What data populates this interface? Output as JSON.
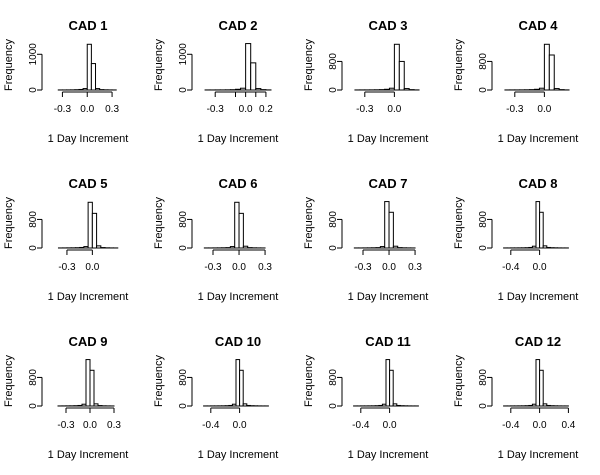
{
  "chart_data": [
    {
      "type": "bar",
      "title": "CAD 1",
      "xlabel": "1 Day Increment",
      "ylabel": "Frequency",
      "xlim": [
        -0.45,
        0.42
      ],
      "ylim": [
        0,
        1400
      ],
      "x_ticks": [
        -0.3,
        0.0,
        0.3
      ],
      "x_tick_labels": [
        "-0.3",
        "0.0",
        "0.3"
      ],
      "y_ticks": [
        0,
        1000
      ],
      "y_tick_labels": [
        "0",
        "1000"
      ],
      "bin_edges": [
        -0.45,
        -0.4,
        -0.35,
        -0.3,
        -0.25,
        -0.2,
        -0.15,
        -0.1,
        -0.05,
        0.0,
        0.05,
        0.1,
        0.15,
        0.2,
        0.25,
        0.3,
        0.35,
        0.4
      ],
      "values": [
        0,
        0,
        2,
        2,
        3,
        4,
        8,
        15,
        40,
        1280,
        740,
        40,
        10,
        5,
        3,
        2,
        0
      ]
    },
    {
      "type": "bar",
      "title": "CAD 2",
      "xlabel": "1 Day Increment",
      "ylabel": "Frequency",
      "xlim": [
        -0.45,
        0.26
      ],
      "ylim": [
        0,
        1400
      ],
      "x_ticks": [
        -0.3,
        0.0,
        0.2
      ],
      "x_tick_labels": [
        "-0.3",
        "0.0",
        "0.2"
      ],
      "y_ticks": [
        0,
        1000
      ],
      "y_tick_labels": [
        "0",
        "1000"
      ],
      "bin_edges": [
        -0.45,
        -0.4,
        -0.35,
        -0.3,
        -0.25,
        -0.2,
        -0.15,
        -0.1,
        -0.05,
        0.0,
        0.05,
        0.1,
        0.15,
        0.2,
        0.25
      ],
      "values": [
        0,
        2,
        2,
        3,
        3,
        5,
        8,
        20,
        50,
        1300,
        760,
        40,
        10,
        3
      ],
      "x_unlabeled_ticks": [
        -0.1,
        0.1
      ]
    },
    {
      "type": "bar",
      "title": "CAD 3",
      "xlabel": "1 Day Increment",
      "ylabel": "Frequency",
      "xlim": [
        -0.45,
        0.28
      ],
      "ylim": [
        0,
        1400
      ],
      "x_ticks": [
        -0.3,
        0.0
      ],
      "x_tick_labels": [
        "-0.3",
        "0.0"
      ],
      "y_ticks": [
        0,
        800
      ],
      "y_tick_labels": [
        "0",
        "800"
      ],
      "bin_edges": [
        -0.45,
        -0.4,
        -0.35,
        -0.3,
        -0.25,
        -0.2,
        -0.15,
        -0.1,
        -0.05,
        0.0,
        0.05,
        0.1,
        0.15,
        0.2,
        0.25
      ],
      "values": [
        0,
        2,
        3,
        3,
        4,
        6,
        10,
        20,
        50,
        1280,
        800,
        40,
        10,
        3
      ]
    },
    {
      "type": "bar",
      "title": "CAD 4",
      "xlabel": "1 Day Increment",
      "ylabel": "Frequency",
      "xlim": [
        -0.45,
        0.28
      ],
      "ylim": [
        0,
        1400
      ],
      "x_ticks": [
        -0.3,
        0.0
      ],
      "x_tick_labels": [
        "-0.3",
        "0.0"
      ],
      "y_ticks": [
        0,
        800
      ],
      "y_tick_labels": [
        "0",
        "800"
      ],
      "bin_edges": [
        -0.45,
        -0.4,
        -0.35,
        -0.3,
        -0.25,
        -0.2,
        -0.15,
        -0.1,
        -0.05,
        0.0,
        0.05,
        0.1,
        0.15,
        0.2,
        0.25
      ],
      "values": [
        0,
        2,
        3,
        3,
        4,
        6,
        10,
        20,
        50,
        1280,
        980,
        40,
        10,
        3
      ]
    },
    {
      "type": "bar",
      "title": "CAD 5",
      "xlabel": "1 Day Increment",
      "ylabel": "Frequency",
      "xlim": [
        -0.5,
        0.35
      ],
      "ylim": [
        0,
        1400
      ],
      "x_ticks": [
        -0.3,
        0.0
      ],
      "x_tick_labels": [
        "-0.3",
        "0.0"
      ],
      "y_ticks": [
        0,
        800
      ],
      "y_tick_labels": [
        "0",
        "800"
      ],
      "bin_edges": [
        -0.5,
        -0.45,
        -0.4,
        -0.35,
        -0.3,
        -0.25,
        -0.2,
        -0.15,
        -0.1,
        -0.05,
        0.0,
        0.05,
        0.1,
        0.15,
        0.2,
        0.25,
        0.3,
        0.35
      ],
      "values": [
        0,
        0,
        2,
        3,
        4,
        5,
        8,
        15,
        40,
        1280,
        970,
        60,
        12,
        5,
        3,
        2,
        0
      ]
    },
    {
      "type": "bar",
      "title": "CAD 6",
      "xlabel": "1 Day Increment",
      "ylabel": "Frequency",
      "xlim": [
        -0.45,
        0.38
      ],
      "ylim": [
        0,
        1400
      ],
      "x_ticks": [
        -0.3,
        0.0,
        0.3
      ],
      "x_tick_labels": [
        "-0.3",
        "0.0",
        "0.3"
      ],
      "y_ticks": [
        0,
        800
      ],
      "y_tick_labels": [
        "0",
        "800"
      ],
      "bin_edges": [
        -0.45,
        -0.4,
        -0.35,
        -0.3,
        -0.25,
        -0.2,
        -0.15,
        -0.1,
        -0.05,
        0.0,
        0.05,
        0.1,
        0.15,
        0.2,
        0.25,
        0.3,
        0.35
      ],
      "values": [
        0,
        2,
        2,
        3,
        4,
        6,
        10,
        40,
        1280,
        970,
        50,
        10,
        5,
        3,
        2,
        0
      ]
    },
    {
      "type": "bar",
      "title": "CAD 7",
      "xlabel": "1 Day Increment",
      "ylabel": "Frequency",
      "xlim": [
        -0.45,
        0.38
      ],
      "ylim": [
        0,
        1400
      ],
      "x_ticks": [
        -0.3,
        0.0,
        0.3
      ],
      "x_tick_labels": [
        "-0.3",
        "0.0",
        "0.3"
      ],
      "y_ticks": [
        0,
        800
      ],
      "y_tick_labels": [
        "0",
        "800"
      ],
      "bin_edges": [
        -0.45,
        -0.4,
        -0.35,
        -0.3,
        -0.25,
        -0.2,
        -0.15,
        -0.1,
        -0.05,
        0.0,
        0.05,
        0.1,
        0.15,
        0.2,
        0.25,
        0.3,
        0.35
      ],
      "values": [
        0,
        2,
        2,
        3,
        4,
        6,
        10,
        40,
        1300,
        1000,
        50,
        10,
        5,
        3,
        2,
        0
      ]
    },
    {
      "type": "bar",
      "title": "CAD 8",
      "xlabel": "1 Day Increment",
      "ylabel": "Frequency",
      "xlim": [
        -0.55,
        0.45
      ],
      "ylim": [
        0,
        1400
      ],
      "x_ticks": [
        -0.4,
        0.0
      ],
      "x_tick_labels": [
        "-0.4",
        "0.0"
      ],
      "y_ticks": [
        0,
        800
      ],
      "y_tick_labels": [
        "0",
        "800"
      ],
      "bin_edges": [
        -0.55,
        -0.5,
        -0.45,
        -0.4,
        -0.35,
        -0.3,
        -0.25,
        -0.2,
        -0.15,
        -0.1,
        -0.05,
        0.0,
        0.05,
        0.1,
        0.15,
        0.2,
        0.25,
        0.3,
        0.35,
        0.4,
        0.45
      ],
      "values": [
        0,
        2,
        2,
        3,
        3,
        4,
        5,
        8,
        15,
        50,
        1300,
        1000,
        60,
        15,
        8,
        5,
        3,
        2,
        2,
        0
      ]
    },
    {
      "type": "bar",
      "title": "CAD 9",
      "xlabel": "1 Day Increment",
      "ylabel": "Frequency",
      "xlim": [
        -0.5,
        0.4
      ],
      "ylim": [
        0,
        1400
      ],
      "x_ticks": [
        -0.3,
        0.0,
        0.3
      ],
      "x_tick_labels": [
        "-0.3",
        "0.0",
        "0.3"
      ],
      "y_ticks": [
        0,
        800
      ],
      "y_tick_labels": [
        "0",
        "800"
      ],
      "bin_edges": [
        -0.5,
        -0.45,
        -0.4,
        -0.35,
        -0.3,
        -0.25,
        -0.2,
        -0.15,
        -0.1,
        -0.05,
        0.0,
        0.05,
        0.1,
        0.15,
        0.2,
        0.25,
        0.3,
        0.35,
        0.4
      ],
      "values": [
        0,
        0,
        2,
        3,
        4,
        5,
        8,
        15,
        50,
        1300,
        1000,
        60,
        12,
        5,
        3,
        2,
        0,
        0
      ]
    },
    {
      "type": "bar",
      "title": "CAD 10",
      "xlabel": "1 Day Increment",
      "ylabel": "Frequency",
      "xlim": [
        -0.55,
        0.45
      ],
      "ylim": [
        0,
        1400
      ],
      "x_ticks": [
        -0.4,
        0.0
      ],
      "x_tick_labels": [
        "-0.4",
        "0.0"
      ],
      "y_ticks": [
        0,
        800
      ],
      "y_tick_labels": [
        "0",
        "800"
      ],
      "bin_edges": [
        -0.55,
        -0.5,
        -0.45,
        -0.4,
        -0.35,
        -0.3,
        -0.25,
        -0.2,
        -0.15,
        -0.1,
        -0.05,
        0.0,
        0.05,
        0.1,
        0.15,
        0.2,
        0.25,
        0.3,
        0.35,
        0.4,
        0.45
      ],
      "values": [
        0,
        2,
        2,
        3,
        3,
        4,
        5,
        8,
        15,
        50,
        1300,
        1000,
        60,
        15,
        8,
        5,
        3,
        2,
        2,
        0
      ]
    },
    {
      "type": "bar",
      "title": "CAD 11",
      "xlabel": "1 Day Increment",
      "ylabel": "Frequency",
      "xlim": [
        -0.55,
        0.45
      ],
      "ylim": [
        0,
        1400
      ],
      "x_ticks": [
        -0.4,
        0.0
      ],
      "x_tick_labels": [
        "-0.4",
        "0.0"
      ],
      "y_ticks": [
        0,
        800
      ],
      "y_tick_labels": [
        "0",
        "800"
      ],
      "bin_edges": [
        -0.55,
        -0.5,
        -0.45,
        -0.4,
        -0.35,
        -0.3,
        -0.25,
        -0.2,
        -0.15,
        -0.1,
        -0.05,
        0.0,
        0.05,
        0.1,
        0.15,
        0.2,
        0.25,
        0.3,
        0.35,
        0.4,
        0.45
      ],
      "values": [
        0,
        2,
        2,
        3,
        3,
        4,
        5,
        8,
        15,
        50,
        1300,
        1000,
        60,
        15,
        8,
        5,
        3,
        2,
        2,
        0
      ]
    },
    {
      "type": "bar",
      "title": "CAD 12",
      "xlabel": "1 Day Increment",
      "ylabel": "Frequency",
      "xlim": [
        -0.55,
        0.45
      ],
      "ylim": [
        0,
        1400
      ],
      "x_ticks": [
        -0.4,
        0.0,
        0.4
      ],
      "x_tick_labels": [
        "-0.4",
        "0.0",
        "0.4"
      ],
      "y_ticks": [
        0,
        800
      ],
      "y_tick_labels": [
        "0",
        "800"
      ],
      "bin_edges": [
        -0.55,
        -0.5,
        -0.45,
        -0.4,
        -0.35,
        -0.3,
        -0.25,
        -0.2,
        -0.15,
        -0.1,
        -0.05,
        0.0,
        0.05,
        0.1,
        0.15,
        0.2,
        0.25,
        0.3,
        0.35,
        0.4,
        0.45
      ],
      "values": [
        0,
        2,
        2,
        3,
        3,
        4,
        5,
        8,
        15,
        50,
        1300,
        1000,
        60,
        15,
        8,
        5,
        3,
        2,
        2,
        0
      ]
    }
  ]
}
